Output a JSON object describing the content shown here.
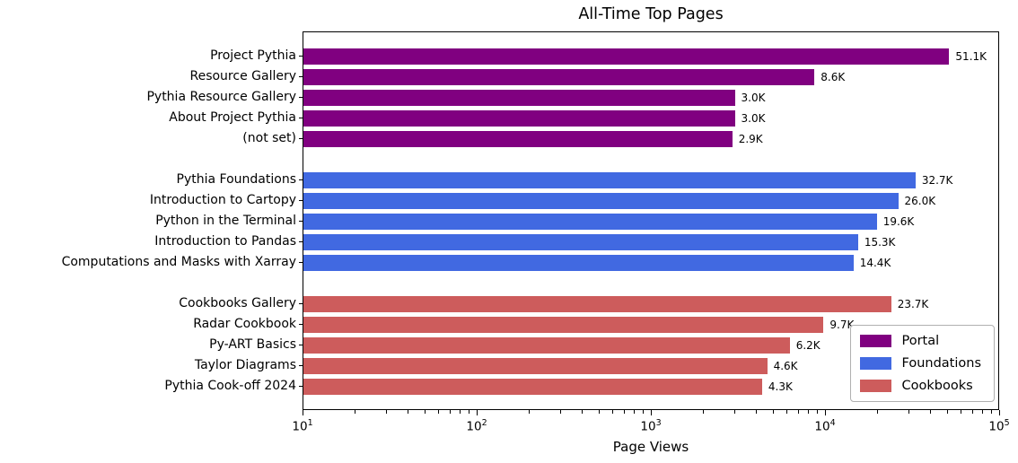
{
  "chart_data": {
    "type": "bar",
    "orientation": "horizontal",
    "title": "All-Time Top Pages",
    "xlabel": "Page Views",
    "xscale": "log",
    "xlim": [
      10,
      100000
    ],
    "grid": false,
    "x_ticks": [
      {
        "base": "10",
        "exp": "1"
      },
      {
        "base": "10",
        "exp": "2"
      },
      {
        "base": "10",
        "exp": "3"
      },
      {
        "base": "10",
        "exp": "4"
      },
      {
        "base": "10",
        "exp": "5"
      }
    ],
    "legend": {
      "position": "lower right",
      "entries": [
        {
          "label": "Portal",
          "color": "#800080"
        },
        {
          "label": "Foundations",
          "color": "#4169E1"
        },
        {
          "label": "Cookbooks",
          "color": "#CD5C5C"
        }
      ]
    },
    "series": [
      {
        "name": "Portal",
        "color": "#800080",
        "items": [
          {
            "label": "Project Pythia",
            "value": 51100,
            "value_label": "51.1K"
          },
          {
            "label": "Resource Gallery",
            "value": 8600,
            "value_label": "8.6K"
          },
          {
            "label": "Pythia Resource Gallery",
            "value": 3000,
            "value_label": "3.0K"
          },
          {
            "label": "About Project Pythia",
            "value": 3000,
            "value_label": "3.0K"
          },
          {
            "label": "(not set)",
            "value": 2900,
            "value_label": "2.9K"
          }
        ]
      },
      {
        "name": "Foundations",
        "color": "#4169E1",
        "items": [
          {
            "label": "Pythia Foundations",
            "value": 32700,
            "value_label": "32.7K"
          },
          {
            "label": "Introduction to Cartopy",
            "value": 26000,
            "value_label": "26.0K"
          },
          {
            "label": "Python in the Terminal",
            "value": 19600,
            "value_label": "19.6K"
          },
          {
            "label": "Introduction to Pandas",
            "value": 15300,
            "value_label": "15.3K"
          },
          {
            "label": "Computations and Masks with Xarray",
            "value": 14400,
            "value_label": "14.4K"
          }
        ]
      },
      {
        "name": "Cookbooks",
        "color": "#CD5C5C",
        "items": [
          {
            "label": "Cookbooks Gallery",
            "value": 23700,
            "value_label": "23.7K"
          },
          {
            "label": "Radar Cookbook",
            "value": 9700,
            "value_label": "9.7K"
          },
          {
            "label": "Py-ART Basics",
            "value": 6200,
            "value_label": "6.2K"
          },
          {
            "label": "Taylor Diagrams",
            "value": 4600,
            "value_label": "4.6K"
          },
          {
            "label": "Pythia Cook-off 2024",
            "value": 4300,
            "value_label": "4.3K"
          }
        ]
      }
    ]
  }
}
